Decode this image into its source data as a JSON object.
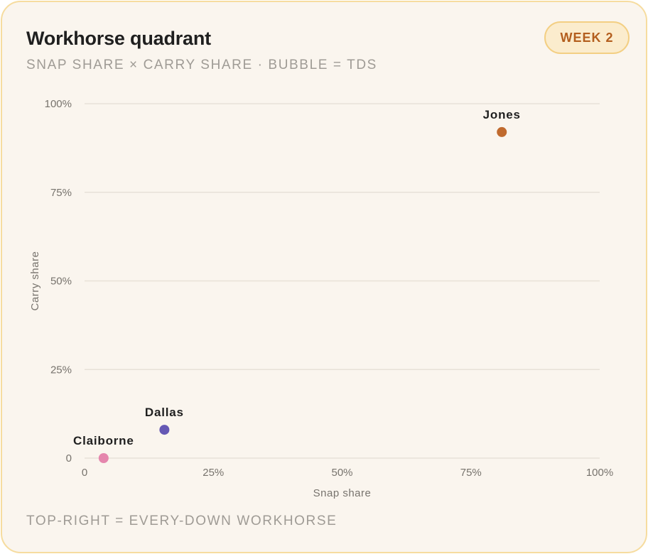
{
  "header": {
    "title": "Workhorse quadrant",
    "subtitle": "SNAP SHARE × CARRY SHARE · BUBBLE = TDS",
    "badge": "WEEK 2"
  },
  "footer": {
    "note": "TOP-RIGHT = EVERY-DOWN WORKHORSE"
  },
  "chart_data": {
    "type": "scatter",
    "xlabel": "Snap share",
    "ylabel": "Carry share",
    "xlim": [
      0,
      100
    ],
    "ylim": [
      0,
      100
    ],
    "x_ticks": [
      0,
      25,
      50,
      75,
      100
    ],
    "x_tick_labels": [
      "0",
      "25%",
      "50%",
      "75%",
      "100%"
    ],
    "y_ticks": [
      0,
      25,
      50,
      75,
      100
    ],
    "y_tick_labels": [
      "0",
      "25%",
      "50%",
      "75%",
      "100%"
    ],
    "grid": "horizontal",
    "points": [
      {
        "name": "Jones",
        "x": 81,
        "y": 92,
        "color": "#c06a2e"
      },
      {
        "name": "Dallas",
        "x": 15.5,
        "y": 8,
        "color": "#6558b4"
      },
      {
        "name": "Claiborne",
        "x": 3.7,
        "y": 0,
        "color": "#e586ad"
      }
    ]
  }
}
